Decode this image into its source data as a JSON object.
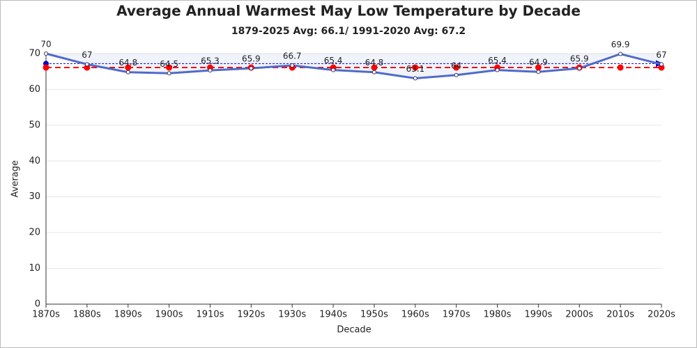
{
  "chart_data": {
    "type": "line",
    "title": "Average Annual Warmest May Low Temperature by Decade",
    "subtitle": "1879-2025 Avg: 66.1/ 1991-2020 Avg: 67.2",
    "x_label": "Decade",
    "y_label": "Average",
    "categories": [
      "1870s",
      "1880s",
      "1890s",
      "1900s",
      "1910s",
      "1920s",
      "1930s",
      "1940s",
      "1950s",
      "1960s",
      "1970s",
      "1980s",
      "1990s",
      "2000s",
      "2010s",
      "2020s"
    ],
    "values": [
      70,
      67,
      64.8,
      64.5,
      65.3,
      65.9,
      66.7,
      65.4,
      64.8,
      63.1,
      64,
      65.4,
      64.9,
      65.9,
      69.9,
      67
    ],
    "color": "#4f6bc9",
    "reference_lines": [
      {
        "value": 66.1,
        "color": "#ff0000"
      },
      {
        "value": 67.2,
        "color": "#0000cc"
      }
    ],
    "ylim": [
      0,
      70
    ],
    "yticks": [
      0,
      10,
      20,
      30,
      40,
      50,
      60,
      70
    ],
    "grid": true
  }
}
